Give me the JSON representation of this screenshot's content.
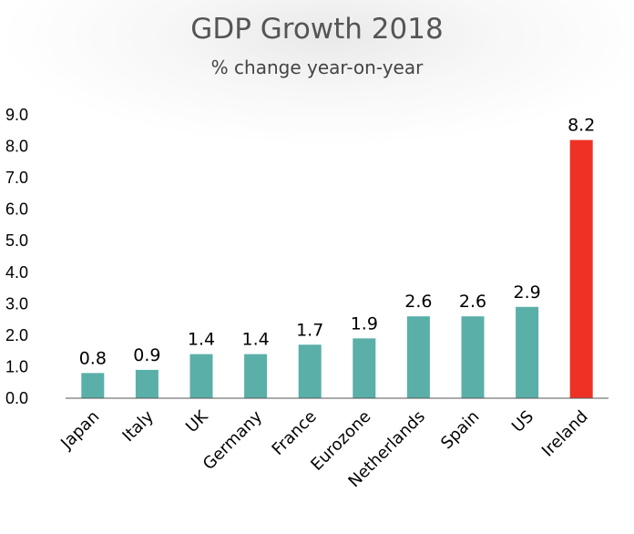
{
  "chart_data": {
    "type": "bar",
    "title": "GDP Growth 2018",
    "subtitle": "% change year-on-year",
    "categories": [
      "Japan",
      "Italy",
      "UK",
      "Germany",
      "France",
      "Eurozone",
      "Netherlands",
      "Spain",
      "US",
      "Ireland"
    ],
    "values": [
      0.8,
      0.9,
      1.4,
      1.4,
      1.7,
      1.9,
      2.6,
      2.6,
      2.9,
      8.2
    ],
    "data_labels": [
      "0.8",
      "0.9",
      "1.4",
      "1.4",
      "1.7",
      "1.9",
      "2.6",
      "2.6",
      "2.9",
      "8.2"
    ],
    "ylim": [
      0,
      9
    ],
    "yticks": [
      "0.0",
      "1.0",
      "2.0",
      "3.0",
      "4.0",
      "5.0",
      "6.0",
      "7.0",
      "8.0",
      "9.0"
    ],
    "xlabel": "",
    "ylabel": "",
    "grid": false,
    "colors": {
      "default_bar": "#5aafa9",
      "highlight_bar": "#ee3124",
      "axis": "#555555"
    },
    "highlight_category": "Ireland"
  }
}
